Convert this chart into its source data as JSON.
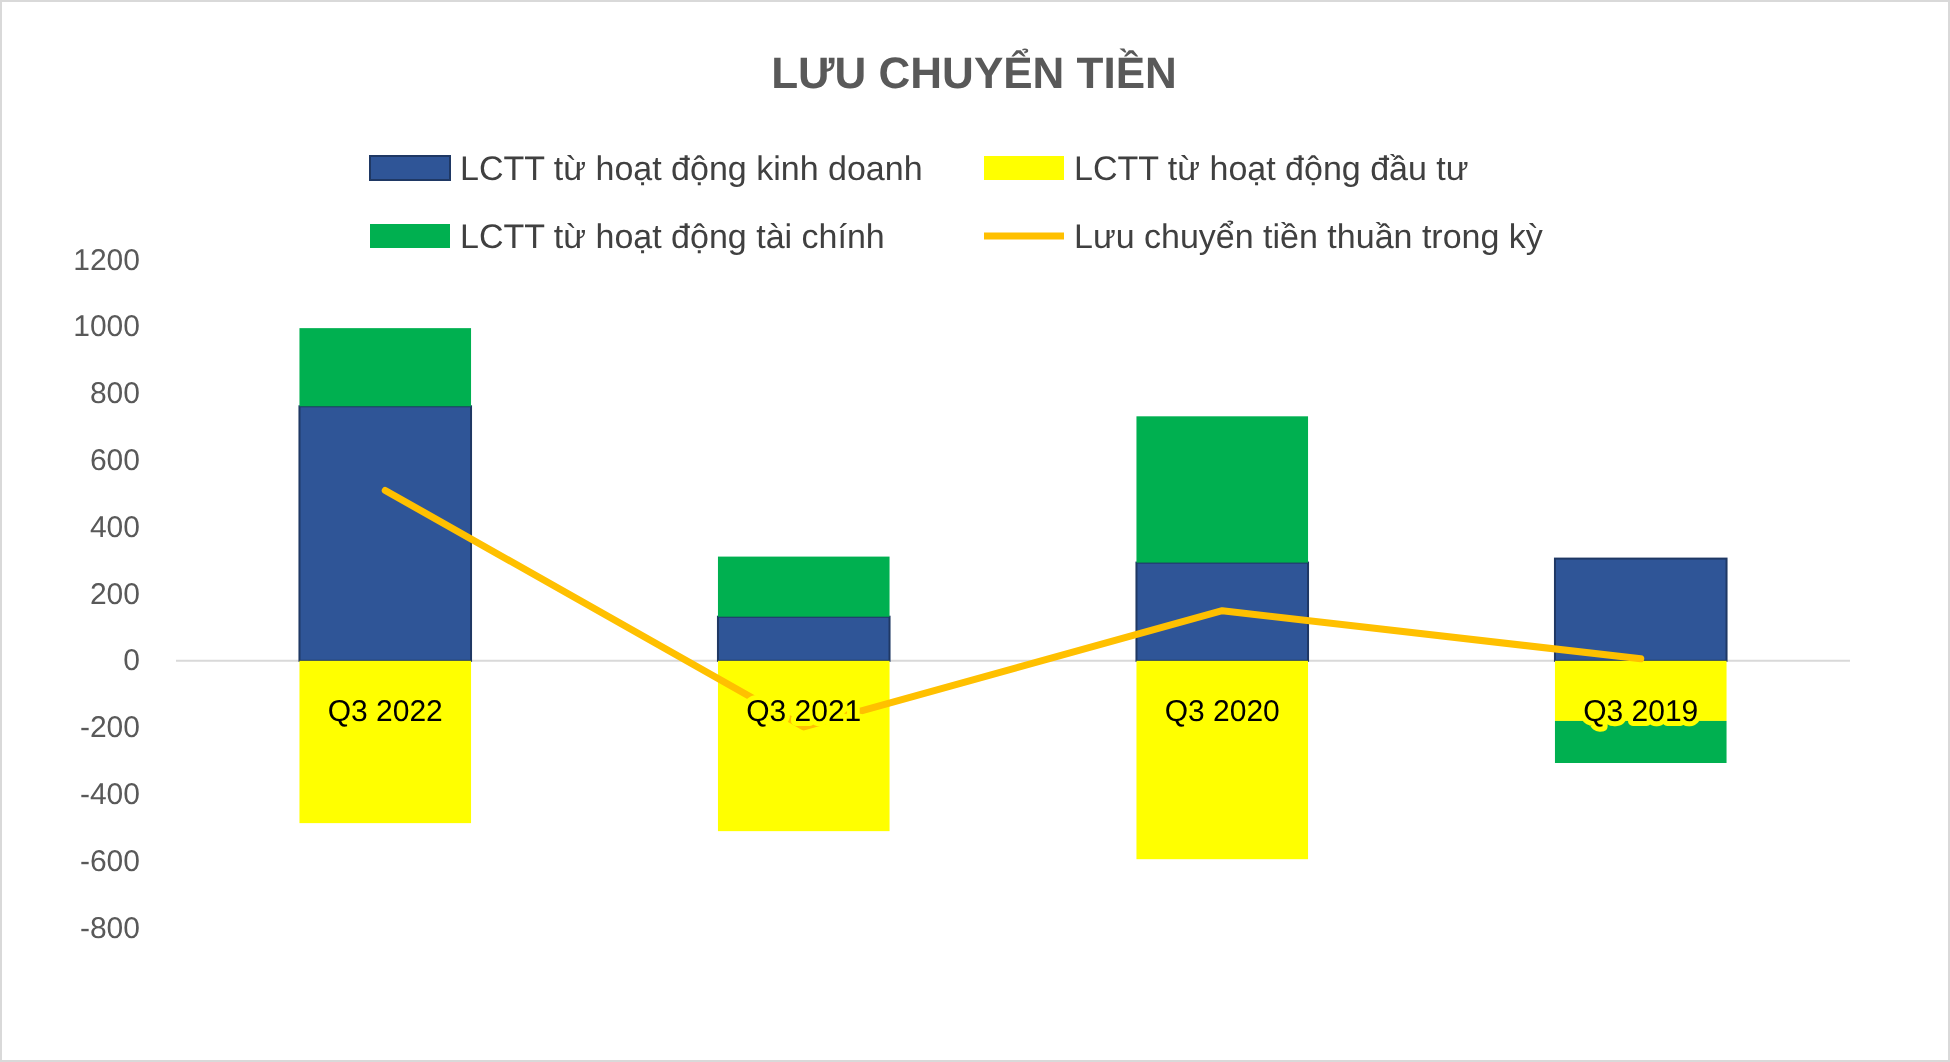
{
  "chart_data": {
    "type": "bar",
    "title": "LƯU CHUYỂN TIỀN",
    "categories": [
      "Q3 2022",
      "Q3 2021",
      "Q3 2020",
      "Q3 2019"
    ],
    "stacked": true,
    "series": [
      {
        "name": "LCTT từ hoạt động kinh doanh",
        "color": "#2f5597",
        "values": [
          762,
          132,
          294,
          306
        ]
      },
      {
        "name": "LCTT từ hoạt động đầu tư",
        "color": "#ffff00",
        "values": [
          -486,
          -510,
          -594,
          -180
        ]
      },
      {
        "name": "LCTT từ hoạt động tài chính",
        "color": "#00b050",
        "values": [
          234,
          180,
          438,
          -126
        ]
      },
      {
        "name": "Lưu chuyển tiền thuần trong kỳ",
        "color": "#ffc000",
        "type": "line",
        "values": [
          510,
          -198,
          150,
          6
        ]
      }
    ],
    "ylim": [
      -800,
      1200
    ],
    "yticks": [
      -800,
      -600,
      -400,
      -200,
      0,
      200,
      400,
      600,
      800,
      1000,
      1200
    ],
    "grid": false,
    "legend": "top"
  }
}
